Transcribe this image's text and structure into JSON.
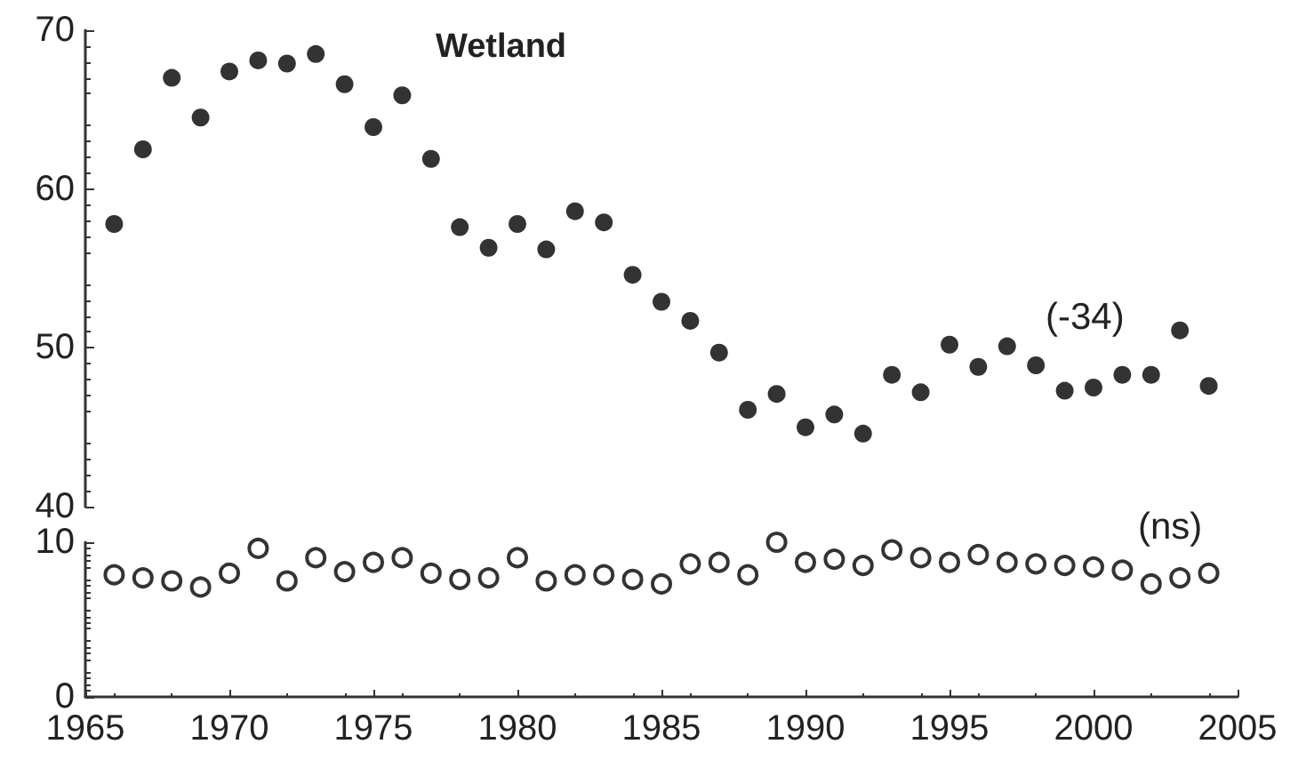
{
  "chart_data": [
    {
      "type": "scatter",
      "x": [
        1966,
        1967,
        1968,
        1969,
        1970,
        1971,
        1972,
        1973,
        1974,
        1975,
        1976,
        1977,
        1978,
        1979,
        1980,
        1981,
        1982,
        1983,
        1984,
        1985,
        1986,
        1987,
        1988,
        1989,
        1990,
        1991,
        1992,
        1993,
        1994,
        1995,
        1996,
        1997,
        1998,
        1999,
        2000,
        2001,
        2002,
        2003,
        2004
      ],
      "series": [
        {
          "color": "#000000",
          "values": [
            57.8,
            62.5,
            67.0,
            64.5,
            67.4,
            68.1,
            67.9,
            68.5,
            66.6,
            63.9,
            65.9,
            61.9,
            57.6,
            56.3,
            57.8,
            56.2,
            58.6,
            57.9,
            54.6,
            52.9,
            51.7,
            49.7,
            46.1,
            47.1,
            45.0,
            45.8,
            44.6,
            48.3,
            47.2,
            50.2,
            48.8,
            50.1,
            48.9,
            47.3,
            47.5,
            48.3,
            48.3,
            51.1,
            47.6
          ]
        }
      ],
      "xlim": [
        1965,
        2005
      ],
      "ylim": [
        40,
        70
      ],
      "yticks": [
        40,
        50,
        60,
        70
      ],
      "tick_labels": "y",
      "marker": "circle",
      "grid": false,
      "annotations": [
        "Wetland",
        "(-34)"
      ]
    },
    {
      "type": "scatter",
      "x": [
        1966,
        1967,
        1968,
        1969,
        1970,
        1971,
        1972,
        1973,
        1974,
        1975,
        1976,
        1977,
        1978,
        1979,
        1980,
        1981,
        1982,
        1983,
        1984,
        1985,
        1986,
        1987,
        1988,
        1989,
        1990,
        1991,
        1992,
        1993,
        1994,
        1995,
        1996,
        1997,
        1998,
        1999,
        2000,
        2001,
        2002,
        2003,
        2004
      ],
      "series": [
        {
          "color": "#000000",
          "values": [
            7.9,
            7.7,
            7.5,
            7.1,
            8.0,
            9.6,
            7.5,
            9.0,
            8.1,
            8.7,
            9.0,
            8.0,
            7.6,
            7.7,
            9.0,
            7.5,
            7.9,
            7.9,
            7.6,
            7.3,
            8.6,
            8.7,
            7.9,
            10.0,
            8.7,
            8.9,
            8.5,
            9.5,
            9.0,
            8.7,
            9.2,
            8.7,
            8.6,
            8.5,
            8.4,
            8.2,
            7.3,
            7.7,
            8.0
          ]
        }
      ],
      "xlim": [
        1965,
        2005
      ],
      "xticks": [
        1965,
        1970,
        1975,
        1980,
        1985,
        1990,
        1995,
        2000,
        2005
      ],
      "ylim": [
        0,
        10
      ],
      "yticks": [
        0,
        10
      ],
      "marker": "circle",
      "grid": false,
      "annotations": [
        "(ns)"
      ]
    }
  ]
}
